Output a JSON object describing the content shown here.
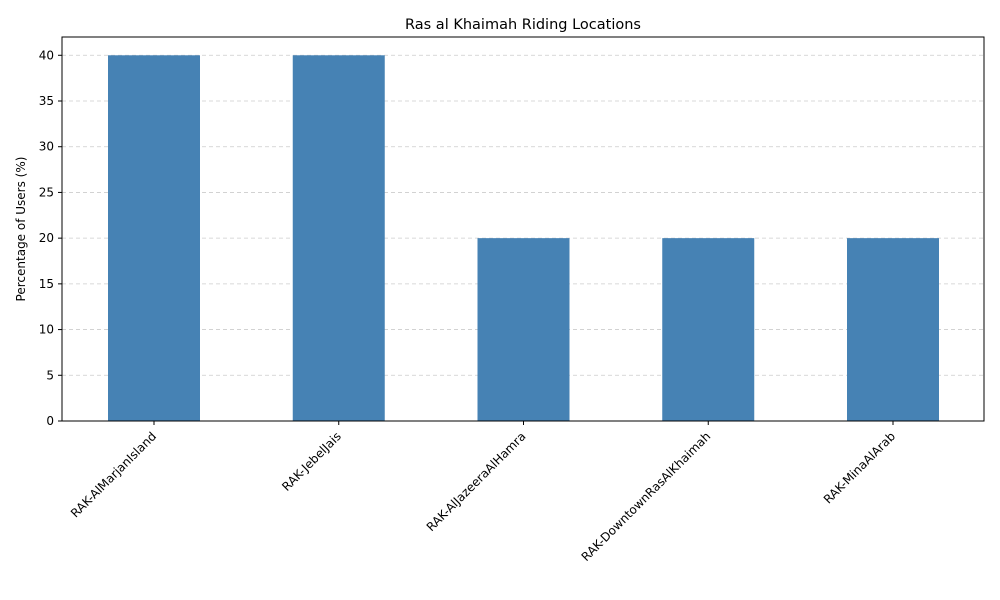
{
  "chart_data": {
    "type": "bar",
    "title": "Ras al Khaimah Riding Locations",
    "xlabel": "",
    "ylabel": "Percentage of Users (%)",
    "categories": [
      "RAK-AlMarjanIsland",
      "RAK-JebelJais",
      "RAK-AlJazeeraAlHamra",
      "RAK-DowntownRasAlKhaimah",
      "RAK-MinaAlArab"
    ],
    "values": [
      40,
      40,
      20,
      20,
      20
    ],
    "ylim": [
      0,
      42
    ],
    "yticks": [
      0,
      5,
      10,
      15,
      20,
      25,
      30,
      35,
      40
    ],
    "grid": "y-dashed",
    "legend": "none",
    "bar_color": "#4682b4"
  }
}
